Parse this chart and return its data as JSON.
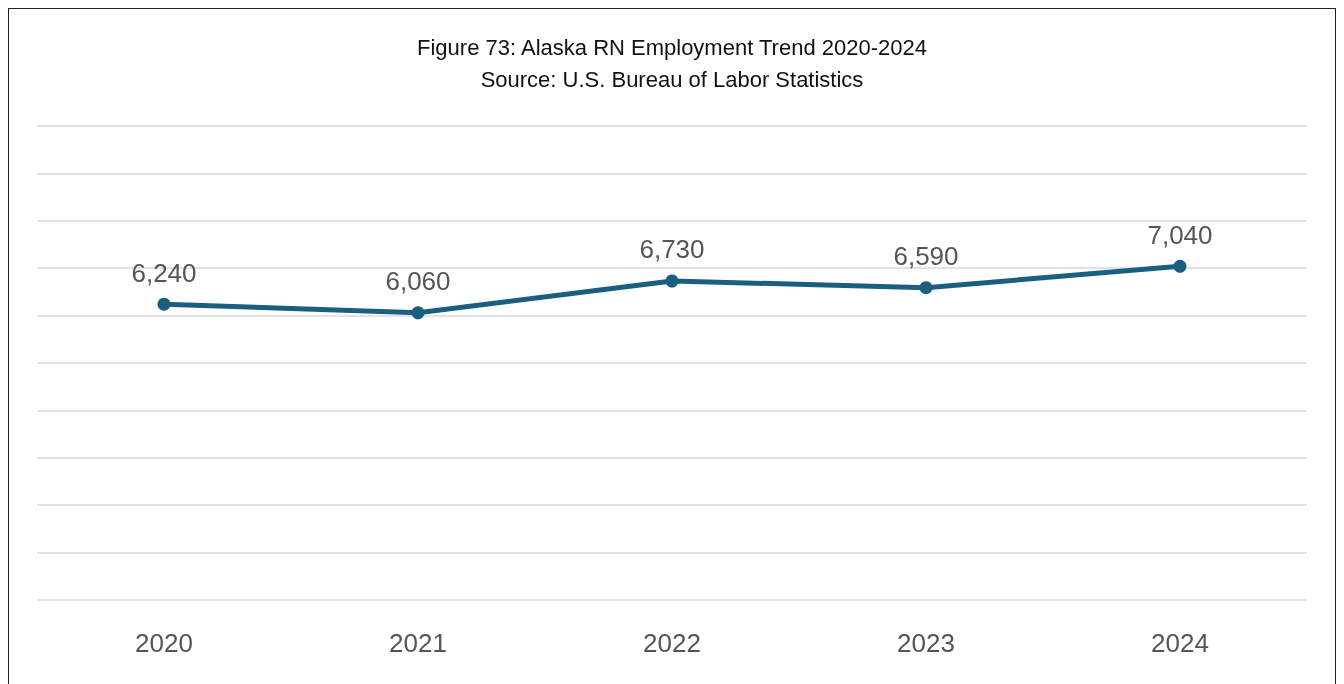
{
  "chart_data": {
    "type": "line",
    "title": "Figure 73: Alaska RN Employment Trend 2020-2024",
    "subtitle": "Source: U.S. Bureau of Labor Statistics",
    "categories": [
      "2020",
      "2021",
      "2022",
      "2023",
      "2024"
    ],
    "series": [
      {
        "color": "#1b5f80",
        "values": [
          6240,
          6060,
          6730,
          6590,
          7040
        ],
        "value_labels": [
          "6,240",
          "6,060",
          "6,730",
          "6,590",
          "7,040"
        ]
      }
    ],
    "ylim": [
      0,
      10000
    ],
    "yticks": [
      {
        "value": 0,
        "label": null
      },
      {
        "value": 1000,
        "label": null
      },
      {
        "value": 2000,
        "label": null
      },
      {
        "value": 3000,
        "label": null
      },
      {
        "value": 4000,
        "label": null
      },
      {
        "value": 5000,
        "label": null
      },
      {
        "value": 6000,
        "label": null
      },
      {
        "value": 7000,
        "label": null
      },
      {
        "value": 8000,
        "label": null
      },
      {
        "value": 9000,
        "label": null
      },
      {
        "value": 10000,
        "label": null
      }
    ],
    "tick_labels": "x",
    "grid": "y",
    "marker": "circle",
    "line_style": "solid"
  }
}
